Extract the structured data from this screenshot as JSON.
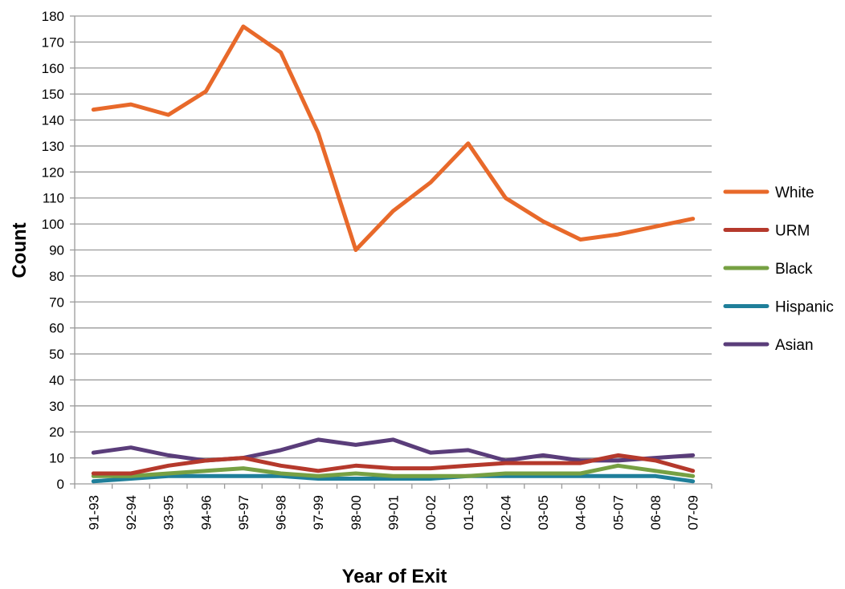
{
  "chart_data": {
    "type": "line",
    "title": "",
    "xlabel": "Year of Exit",
    "ylabel": "Count",
    "categories": [
      "91-93",
      "92-94",
      "93-95",
      "94-96",
      "95-97",
      "96-98",
      "97-99",
      "98-00",
      "99-01",
      "00-02",
      "01-03",
      "02-04",
      "03-05",
      "04-06",
      "05-07",
      "06-08",
      "07-09"
    ],
    "ylim": [
      0,
      180
    ],
    "yticks": [
      0,
      10,
      20,
      30,
      40,
      50,
      60,
      70,
      80,
      90,
      100,
      110,
      120,
      130,
      140,
      150,
      160,
      170,
      180
    ],
    "grid": true,
    "legend_position": "right",
    "series": [
      {
        "name": "White",
        "color": "#e8692a",
        "values": [
          144,
          146,
          142,
          151,
          176,
          166,
          135,
          90,
          105,
          116,
          131,
          110,
          101,
          94,
          96,
          99,
          102
        ]
      },
      {
        "name": "URM",
        "color": "#b5392c",
        "values": [
          4,
          4,
          7,
          9,
          10,
          7,
          5,
          7,
          6,
          6,
          7,
          8,
          8,
          8,
          11,
          9,
          5
        ]
      },
      {
        "name": "Black",
        "color": "#76a043",
        "values": [
          3,
          3,
          4,
          5,
          6,
          4,
          3,
          4,
          3,
          3,
          3,
          4,
          4,
          4,
          7,
          5,
          3
        ]
      },
      {
        "name": "Hispanic",
        "color": "#1f7f9a",
        "values": [
          1,
          2,
          3,
          3,
          3,
          3,
          2,
          2,
          2,
          2,
          3,
          3,
          3,
          3,
          3,
          3,
          1
        ]
      },
      {
        "name": "Asian",
        "color": "#5a3d7a",
        "values": [
          12,
          14,
          11,
          9,
          10,
          13,
          17,
          15,
          17,
          12,
          13,
          9,
          11,
          9,
          9,
          10,
          11
        ]
      }
    ]
  }
}
